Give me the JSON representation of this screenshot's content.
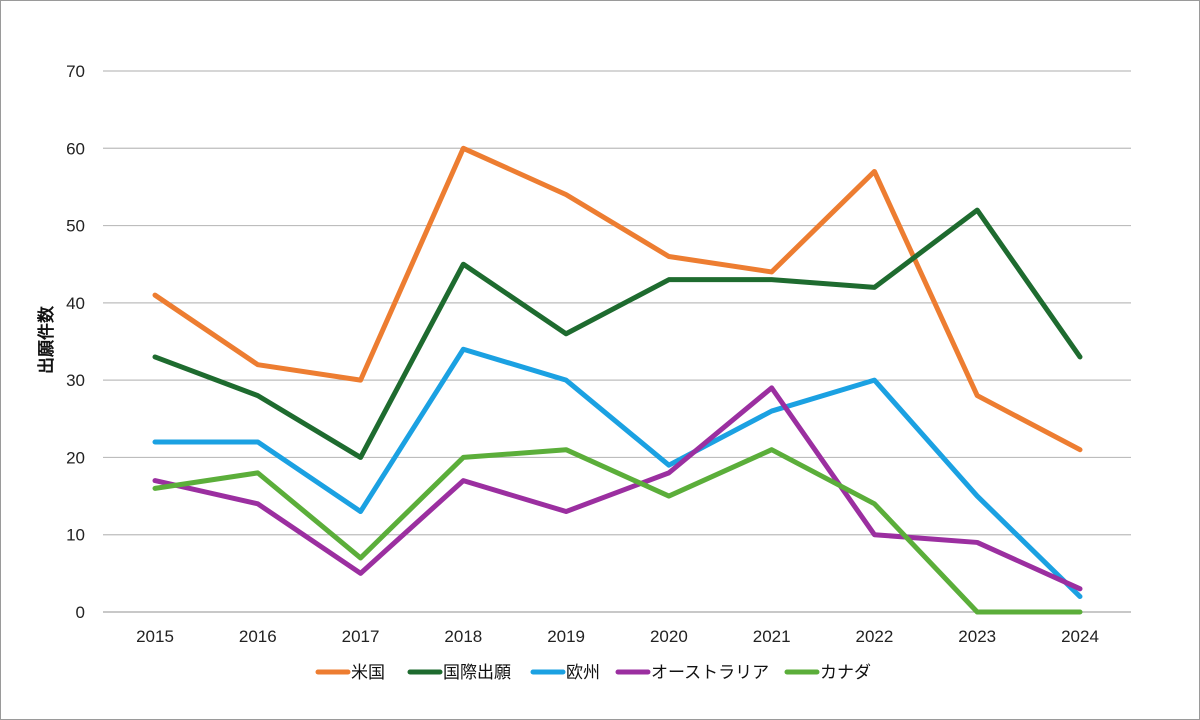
{
  "chart_data": {
    "type": "line",
    "title": "",
    "xlabel": "",
    "ylabel": "出願件数",
    "categories": [
      "2015",
      "2016",
      "2017",
      "2018",
      "2019",
      "2020",
      "2021",
      "2022",
      "2023",
      "2024"
    ],
    "ylim": [
      0,
      70
    ],
    "yticks": [
      "0",
      "10",
      "20",
      "30",
      "40",
      "50",
      "60",
      "70"
    ],
    "grid": true,
    "legend_position": "bottom",
    "series": [
      {
        "name": "米国",
        "color": "#ED7D31",
        "values": [
          41,
          32,
          30,
          60,
          54,
          46,
          44,
          57,
          28,
          21
        ]
      },
      {
        "name": "国際出願",
        "color": "#1E6B2F",
        "values": [
          33,
          28,
          20,
          45,
          36,
          43,
          43,
          42,
          52,
          33
        ]
      },
      {
        "name": "欧州",
        "color": "#1BA1E2",
        "values": [
          22,
          22,
          13,
          34,
          30,
          19,
          26,
          30,
          15,
          2
        ]
      },
      {
        "name": "オーストラリア",
        "color": "#9B2FA0",
        "values": [
          17,
          14,
          5,
          17,
          13,
          18,
          29,
          10,
          9,
          3
        ]
      },
      {
        "name": "カナダ",
        "color": "#5BAE3A",
        "values": [
          16,
          18,
          7,
          20,
          21,
          15,
          21,
          14,
          0,
          0
        ]
      }
    ]
  }
}
